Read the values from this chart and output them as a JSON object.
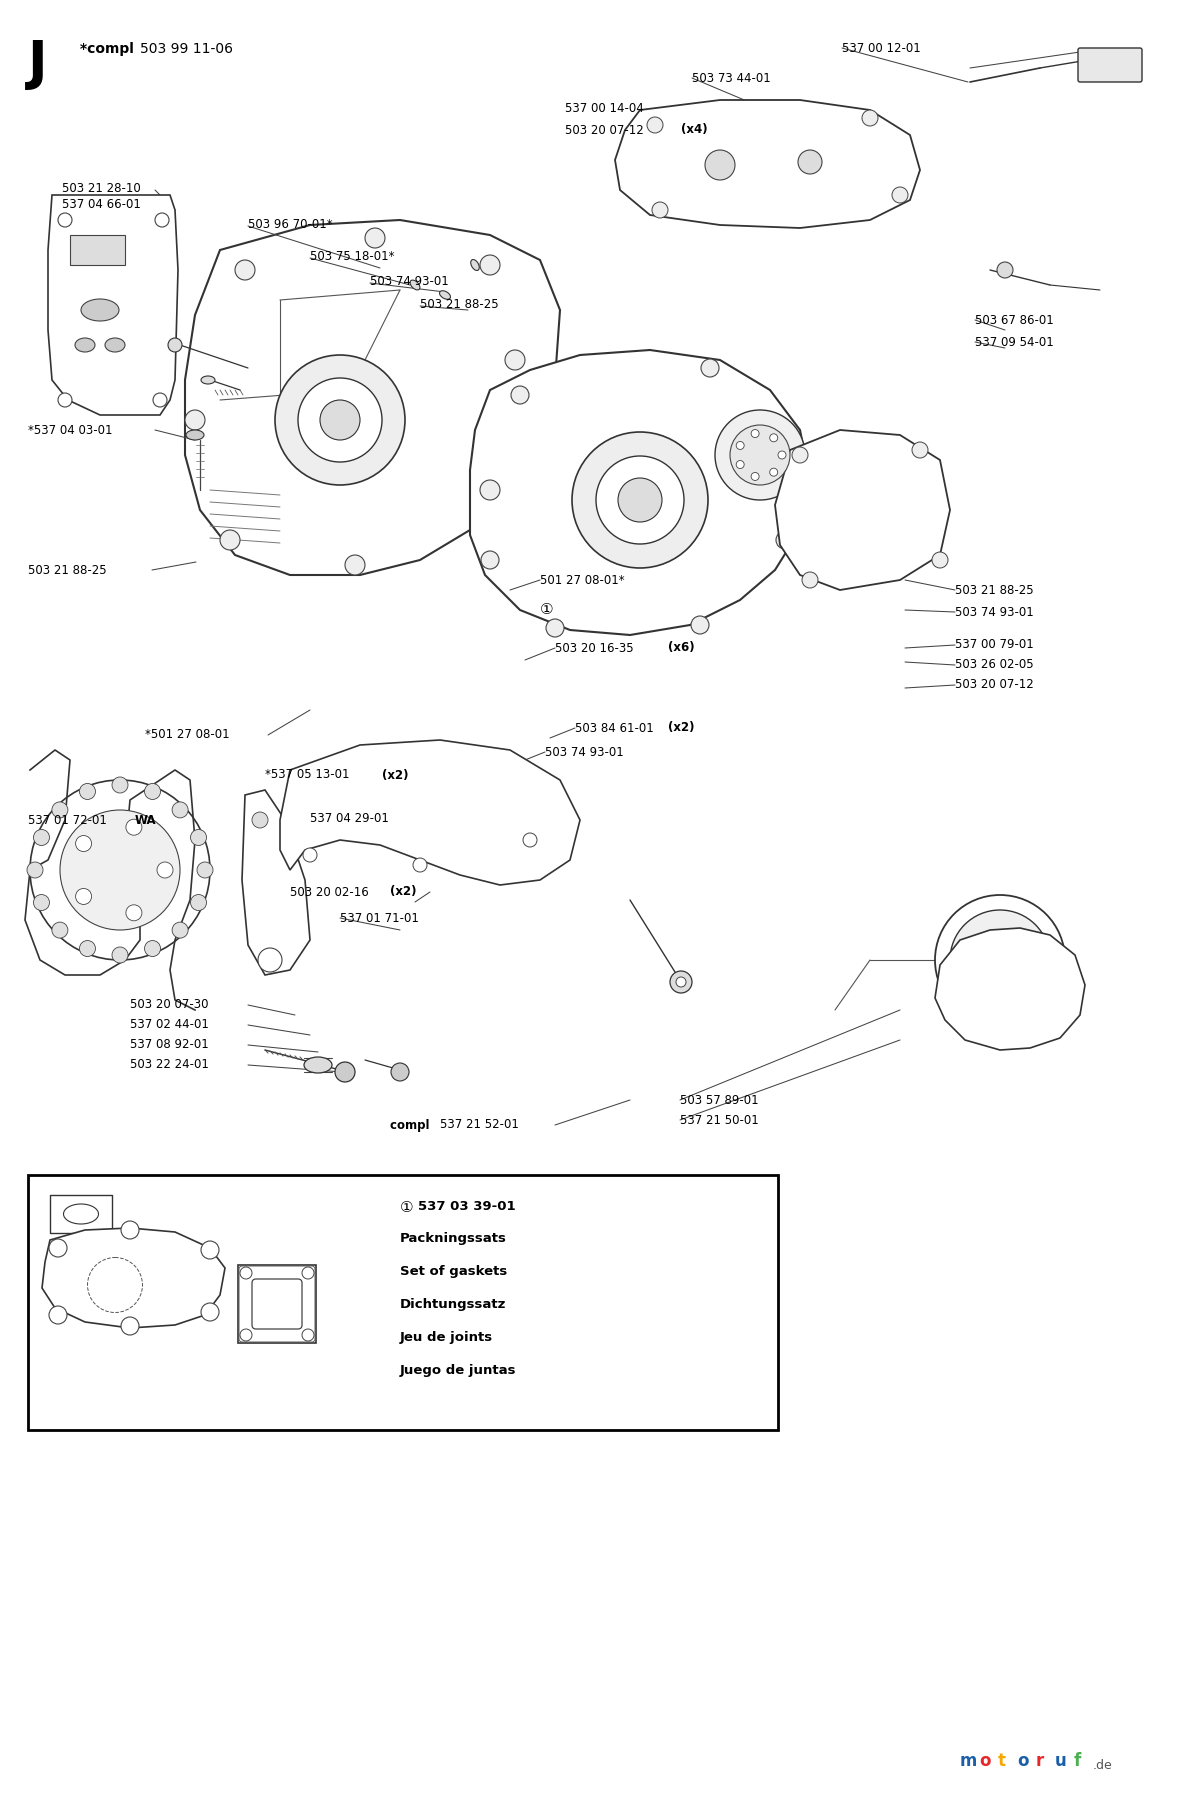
{
  "bg_color": "#f5f5f0",
  "page_bg": "#ffffff",
  "title_letter": "J",
  "title_note": "*compl 503 99 11-06",
  "box_title": "①537 03 39-01",
  "box_lines": [
    "Packningssats",
    "Set of gaskets",
    "Dichtungssatz",
    "Jeu de joints",
    "Juego de juntas"
  ],
  "watermark_letters": [
    "m",
    "o",
    "t",
    "o",
    "r",
    "u",
    "f"
  ],
  "watermark_colors": [
    "#1a5fa8",
    "#e8272a",
    "#f5a800",
    "#1a5fa8",
    "#e8272a",
    "#1a5fa8",
    "#4caf50"
  ],
  "watermark_de_color": "#555555"
}
